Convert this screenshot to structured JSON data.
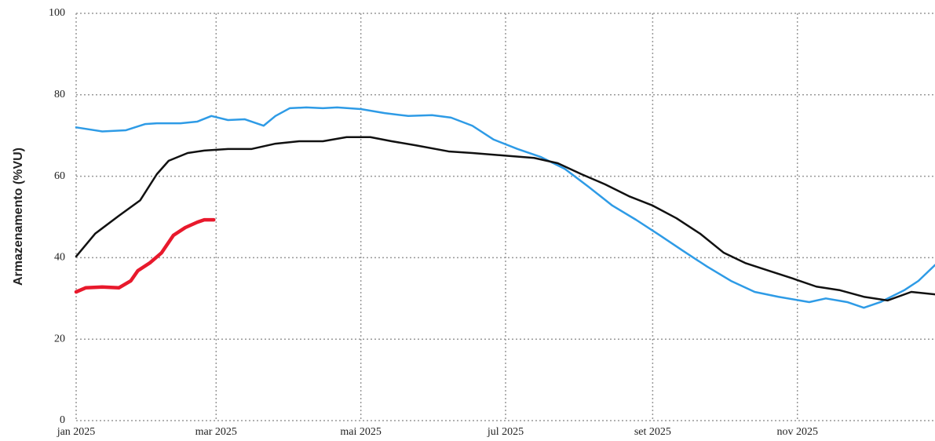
{
  "chart_data": {
    "type": "line",
    "ylabel": "Armazenamento (%VU)",
    "xlim": [
      0,
      362
    ],
    "xticks": [
      {
        "value": 0,
        "label": "jan 2025"
      },
      {
        "value": 59,
        "label": "mar 2025"
      },
      {
        "value": 120,
        "label": "mai 2025"
      },
      {
        "value": 181,
        "label": "jul 2025"
      },
      {
        "value": 243,
        "label": "set 2025"
      },
      {
        "value": 304,
        "label": "nov 2025"
      }
    ],
    "ylim": [
      0,
      100
    ],
    "yticks": [
      0,
      20,
      40,
      60,
      80,
      100
    ],
    "grid": true,
    "series": [
      {
        "color": "#2e9be6",
        "width": 2.5,
        "x": [
          0,
          11,
          21,
          29,
          34,
          44,
          51,
          57,
          64,
          71,
          79,
          84,
          90,
          97,
          104,
          110,
          120,
          130,
          140,
          150,
          158,
          167,
          176,
          186,
          196,
          206,
          216,
          226,
          236,
          246,
          256,
          266,
          276,
          286,
          296,
          309,
          316,
          325,
          332,
          339,
          349,
          355,
          362
        ],
        "values": [
          72,
          71,
          71.3,
          72.8,
          73,
          73,
          73.4,
          74.8,
          73.8,
          74,
          72.4,
          74.8,
          76.7,
          76.9,
          76.7,
          76.9,
          76.5,
          75.5,
          74.8,
          75,
          74.4,
          72.4,
          69,
          66.7,
          64.7,
          61.8,
          57.4,
          52.8,
          49.3,
          45.5,
          41.6,
          37.8,
          34.3,
          31.6,
          30.4,
          29.1,
          30,
          29.1,
          27.7,
          29.1,
          32,
          34.3,
          38.2
        ]
      },
      {
        "color": "#111111",
        "width": 2.5,
        "x": [
          0,
          8,
          18,
          27,
          34,
          39,
          47,
          54,
          64,
          74,
          84,
          94,
          104,
          114,
          124,
          133,
          143,
          157,
          167,
          180,
          193,
          203,
          213,
          223,
          233,
          243,
          253,
          263,
          273,
          282,
          292,
          302,
          312,
          322,
          332,
          342,
          352,
          362
        ],
        "values": [
          40.3,
          45.9,
          50.3,
          54.1,
          60.5,
          63.8,
          65.7,
          66.3,
          66.7,
          66.7,
          68,
          68.6,
          68.6,
          69.6,
          69.6,
          68.6,
          67.6,
          66.1,
          65.7,
          65.1,
          64.5,
          63.2,
          60.5,
          58,
          55.1,
          52.8,
          49.7,
          45.9,
          41.2,
          38.7,
          36.8,
          34.9,
          32.9,
          32,
          30.4,
          29.5,
          31.6,
          31
        ]
      },
      {
        "color": "#e8192c",
        "width": 4.5,
        "x": [
          0,
          4,
          11,
          18,
          23,
          26,
          31,
          36,
          41,
          46,
          51,
          54,
          58
        ],
        "values": [
          31.6,
          32.6,
          32.8,
          32.6,
          34.3,
          36.8,
          38.7,
          41.2,
          45.5,
          47.4,
          48.7,
          49.3,
          49.3
        ]
      }
    ]
  }
}
